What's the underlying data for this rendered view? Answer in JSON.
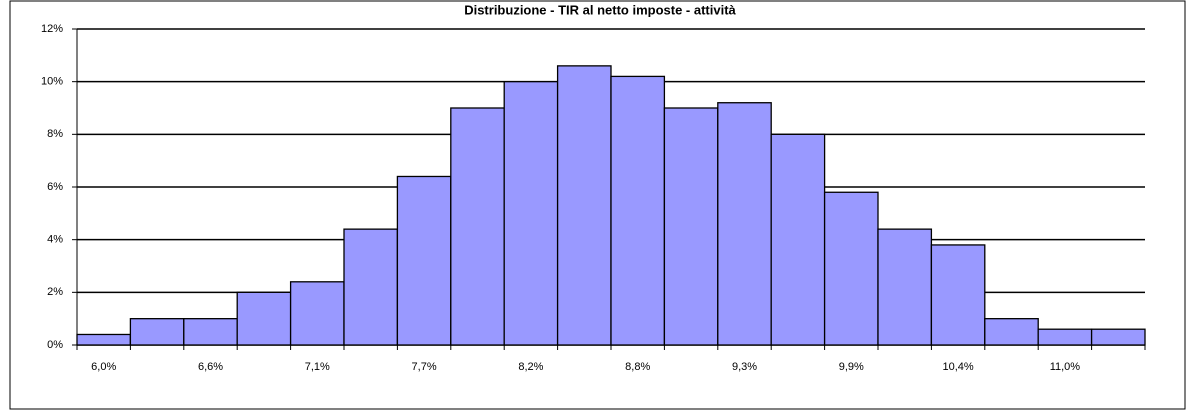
{
  "chart_data": {
    "type": "bar",
    "title": "Distribuzione - TIR al netto imposte - attività",
    "categories": [
      "6,0%",
      null,
      "6,6%",
      null,
      "7,1%",
      null,
      "7,7%",
      null,
      "8,2%",
      null,
      "8,8%",
      null,
      "9,3%",
      null,
      "9,9%",
      null,
      "10,4%",
      null,
      "11,0%",
      null
    ],
    "values": [
      0.4,
      1.0,
      1.0,
      2.0,
      2.4,
      4.4,
      6.4,
      9.0,
      10.0,
      10.6,
      10.2,
      9.0,
      9.2,
      8.0,
      5.8,
      4.4,
      3.8,
      1.0,
      0.6,
      0.6
    ],
    "color": "#9999ff",
    "ylim": [
      0,
      12
    ],
    "yticks": [
      {
        "value": 0,
        "label": "0%"
      },
      {
        "value": 2,
        "label": "2%"
      },
      {
        "value": 4,
        "label": "4%"
      },
      {
        "value": 6,
        "label": "6%"
      },
      {
        "value": 8,
        "label": "8%"
      },
      {
        "value": 10,
        "label": "10%"
      },
      {
        "value": 12,
        "label": "12%"
      }
    ],
    "grid": true
  }
}
